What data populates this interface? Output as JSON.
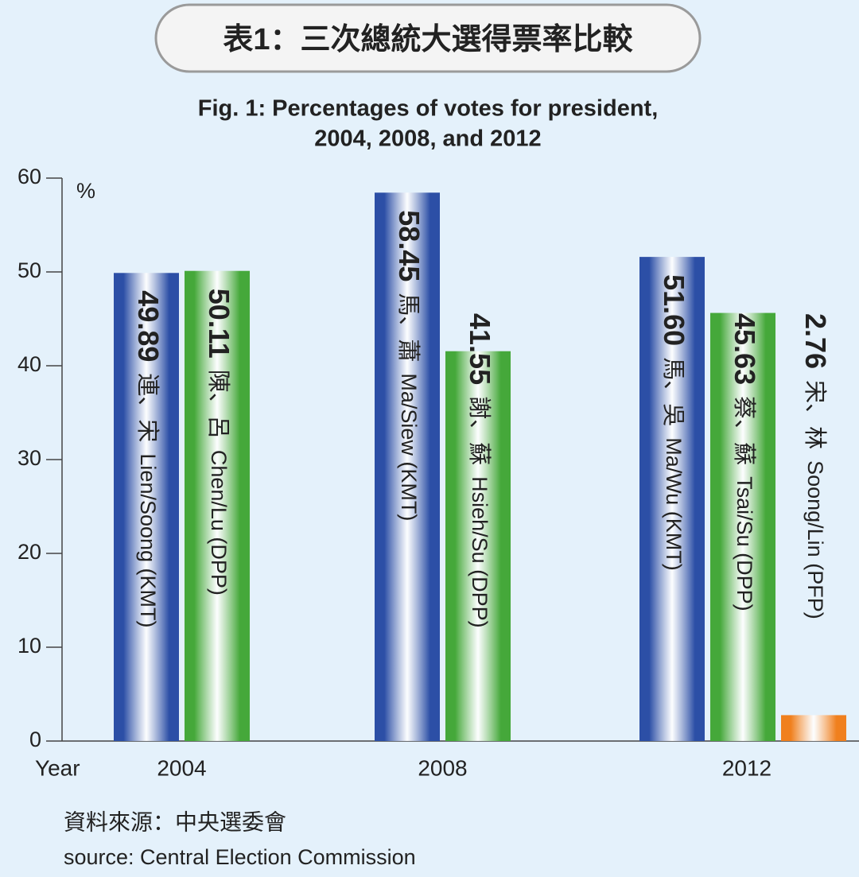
{
  "chart_data": {
    "type": "bar",
    "title": "表1：三次總統大選得票率比較",
    "subtitle": [
      "Fig. 1: Percentages of votes for president,",
      "2004, 2008, and 2012"
    ],
    "y_unit": "%",
    "x_label": "Year",
    "categories": [
      "2004",
      "2008",
      "2012"
    ],
    "groups": [
      [
        {
          "value": 49.89,
          "name_zh": "連、宋",
          "name_en": "Lien/Soong (KMT)",
          "color": "#2c4fa6"
        },
        {
          "value": 50.11,
          "name_zh": "陳、呂",
          "name_en": "Chen/Lu (DPP)",
          "color": "#45a83a"
        }
      ],
      [
        {
          "value": 58.45,
          "name_zh": "馬、蕭",
          "name_en": "Ma/Siew (KMT)",
          "color": "#2c4fa6"
        },
        {
          "value": 41.55,
          "name_zh": "謝、蘇",
          "name_en": "Hsieh/Su (DPP)",
          "color": "#45a83a"
        }
      ],
      [
        {
          "value": 51.6,
          "value_label": "51.60",
          "name_zh": "馬、吳",
          "name_en": "Ma/Wu (KMT)",
          "color": "#2c4fa6"
        },
        {
          "value": 45.63,
          "name_zh": "蔡、蘇",
          "name_en": "Tsai/Su (DPP)",
          "color": "#45a83a"
        },
        {
          "value": 2.76,
          "name_zh": "宋、林",
          "name_en": "Soong/Lin (PFP)",
          "color": "#f0801e"
        }
      ]
    ],
    "ylim": [
      0,
      60
    ],
    "yticks": [
      0,
      10,
      20,
      30,
      40,
      50,
      60
    ],
    "source": [
      "資料來源：中央選委會",
      "source: Central Election Commission"
    ]
  }
}
